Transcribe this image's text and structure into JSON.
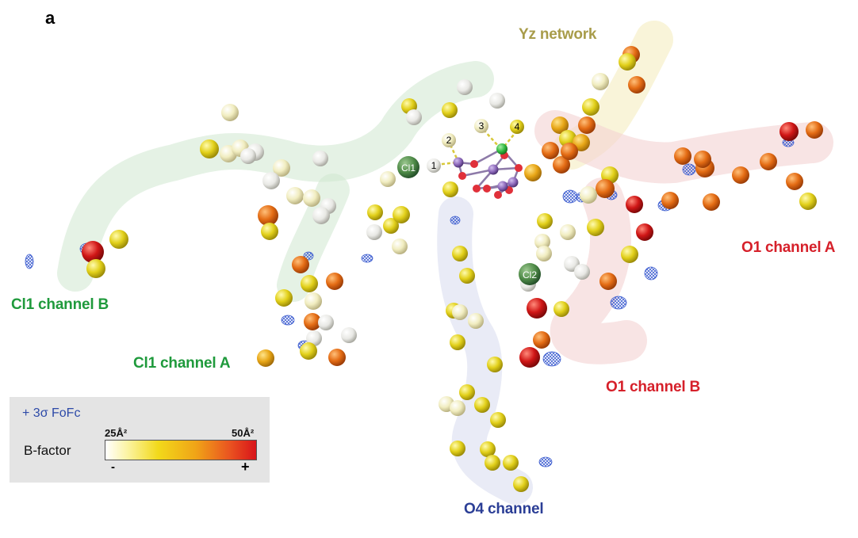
{
  "panel_label": "a",
  "labels": {
    "yz_network": "Yz network",
    "cl1_channel_b": "Cl1 channel B",
    "cl1_channel_a": "Cl1 channel A",
    "o4_channel": "O4 channel",
    "o1_channel_a": "O1 channel A",
    "o1_channel_b": "O1 channel B"
  },
  "label_colors": {
    "yz_network": "#a89c4a",
    "cl1": "#1f9a3c",
    "o4": "#2b3e96",
    "o1": "#d6202a"
  },
  "sites": {
    "cl1": "Cl1",
    "cl2": "Cl2",
    "w1": "1",
    "w2": "2",
    "w3": "3",
    "w4": "4"
  },
  "legend": {
    "fofc": "+ 3σ FoFc",
    "bfactor": "B-factor",
    "low": "25Å²",
    "high": "50Å²",
    "minus": "-",
    "plus": "+"
  },
  "colors": {
    "white": "#f4f4f0",
    "cream": "#f3efc4",
    "yellow": "#e4d21a",
    "gold": "#eaa818",
    "orange": "#e66e15",
    "red": "#d11818",
    "chloride": "#4e8a47",
    "manganese": "#8a66b8",
    "oxygen": "#e0303a",
    "calcium": "#30b840",
    "mesh": "#3f5fd0"
  }
}
